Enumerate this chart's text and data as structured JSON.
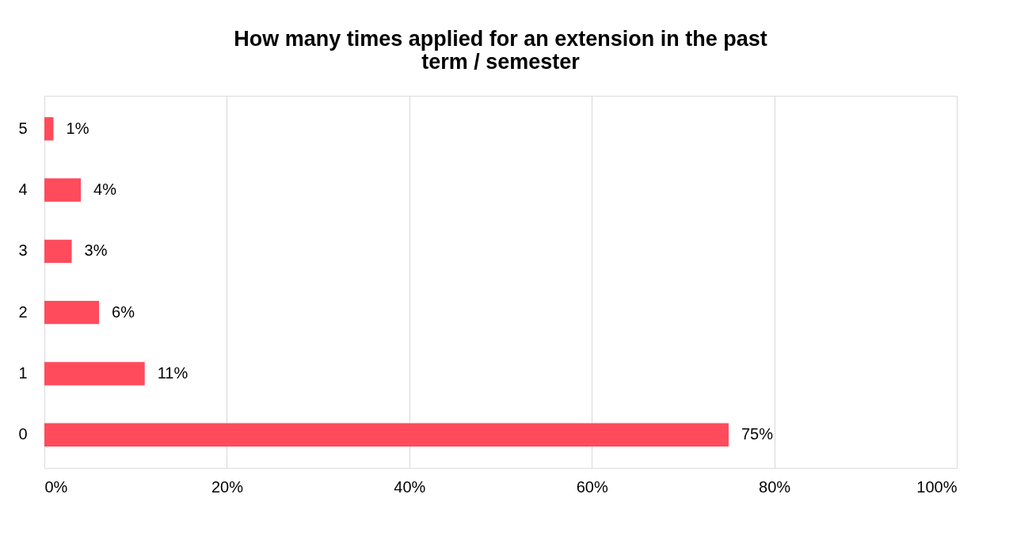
{
  "chart_data": {
    "type": "bar",
    "orientation": "horizontal",
    "title": "How many times applied for an extension in the past term / semester",
    "categories": [
      "5",
      "4",
      "3",
      "2",
      "1",
      "0"
    ],
    "values": [
      1,
      4,
      3,
      6,
      11,
      75
    ],
    "value_labels": [
      "1%",
      "4%",
      "3%",
      "6%",
      "11%",
      "75%"
    ],
    "color": "#ff4b5c",
    "xlim": [
      0,
      100
    ],
    "xticks": [
      {
        "value": 0,
        "label": "0%"
      },
      {
        "value": 20,
        "label": "20%"
      },
      {
        "value": 40,
        "label": "40%"
      },
      {
        "value": 60,
        "label": "60%"
      },
      {
        "value": 80,
        "label": "80%"
      },
      {
        "value": 100,
        "label": "100%"
      }
    ],
    "grid": "x"
  }
}
